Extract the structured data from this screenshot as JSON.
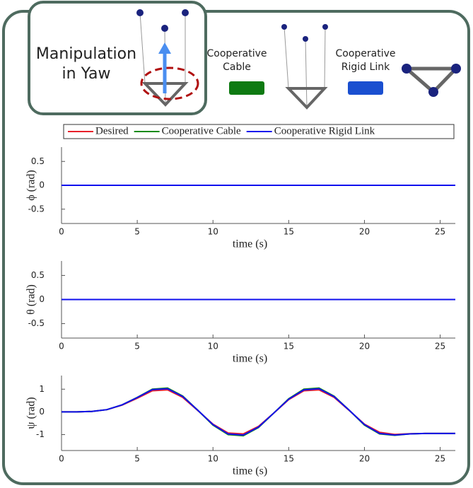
{
  "header": {
    "inset_title_lines": [
      "Manipulation",
      "in Yaw"
    ],
    "cable_label_lines": [
      "Cooperative",
      "Cable"
    ],
    "rigid_label_lines": [
      "Cooperative",
      "Rigid Link"
    ]
  },
  "chart_data": [
    {
      "type": "line",
      "x_label": "time (s)",
      "y_label": "ϕ (rad)",
      "xlim": [
        0,
        26
      ],
      "ylim": [
        -0.8,
        0.8
      ],
      "xticks": [
        0,
        5,
        10,
        15,
        20,
        25
      ],
      "yticks": [
        0.5,
        0,
        -0.5
      ],
      "legend": "top",
      "series": [
        {
          "name": "Desired",
          "color": "#e8202a",
          "x": [
            0,
            26
          ],
          "values": [
            0,
            0
          ]
        },
        {
          "name": "Cooperative Cable",
          "color": "#138a13",
          "x": [
            0,
            26
          ],
          "values": [
            0,
            0
          ]
        },
        {
          "name": "Cooperative Rigid Link",
          "color": "#1010ee",
          "x": [
            0,
            26
          ],
          "values": [
            0,
            0
          ]
        }
      ]
    },
    {
      "type": "line",
      "x_label": "time (s)",
      "y_label": "θ (rad)",
      "xlim": [
        0,
        26
      ],
      "ylim": [
        -0.8,
        0.8
      ],
      "xticks": [
        0,
        5,
        10,
        15,
        20,
        25
      ],
      "yticks": [
        0.5,
        0,
        -0.5
      ],
      "series": [
        {
          "color": "#e8202a",
          "x": [
            0,
            26
          ],
          "values": [
            0,
            0
          ]
        },
        {
          "color": "#138a13",
          "x": [
            0,
            26
          ],
          "values": [
            0,
            0
          ]
        },
        {
          "color": "#1010ee",
          "x": [
            0,
            26
          ],
          "values": [
            0,
            0
          ]
        }
      ]
    },
    {
      "type": "line",
      "x_label": "time (s)",
      "y_label": "ψ (rad)",
      "xlim": [
        0,
        26
      ],
      "ylim": [
        -1.7,
        1.6
      ],
      "xticks": [
        0,
        5,
        10,
        15,
        20,
        25
      ],
      "yticks": [
        1,
        0,
        -1
      ],
      "series": [
        {
          "color": "#e8202a",
          "x": [
            0,
            1,
            2,
            3,
            4,
            5,
            6,
            7,
            8,
            9,
            10,
            11,
            12,
            13,
            14,
            15,
            16,
            17,
            18,
            19,
            20,
            21,
            22,
            23,
            24,
            25,
            26
          ],
          "values": [
            0,
            0,
            0.02,
            0.1,
            0.3,
            0.6,
            0.93,
            0.97,
            0.64,
            0.06,
            -0.54,
            -0.93,
            -0.97,
            -0.64,
            -0.06,
            0.54,
            0.93,
            0.97,
            0.64,
            0.06,
            -0.54,
            -0.9,
            -0.99,
            -0.96,
            -0.95,
            -0.95,
            -0.95
          ]
        },
        {
          "color": "#138a13",
          "x": [
            0,
            1,
            2,
            3,
            4,
            5,
            6,
            7,
            8,
            9,
            10,
            11,
            12,
            13,
            14,
            15,
            16,
            17,
            18,
            19,
            20,
            21,
            22,
            23,
            24,
            25,
            26
          ],
          "values": [
            0,
            0,
            0.02,
            0.1,
            0.31,
            0.64,
            1.0,
            1.05,
            0.7,
            0.07,
            -0.58,
            -1.0,
            -1.05,
            -0.69,
            -0.06,
            0.58,
            1.0,
            1.05,
            0.69,
            0.07,
            -0.58,
            -0.97,
            -1.03,
            -0.97,
            -0.95,
            -0.95,
            -0.95
          ]
        },
        {
          "color": "#1010ee",
          "x": [
            0,
            1,
            2,
            3,
            4,
            5,
            6,
            7,
            8,
            9,
            10,
            11,
            12,
            13,
            14,
            15,
            16,
            17,
            18,
            19,
            20,
            21,
            22,
            23,
            24,
            25,
            26
          ],
          "values": [
            0,
            0,
            0.02,
            0.1,
            0.31,
            0.63,
            0.98,
            1.02,
            0.68,
            0.07,
            -0.56,
            -0.97,
            -1.02,
            -0.67,
            -0.06,
            0.56,
            0.97,
            1.02,
            0.67,
            0.07,
            -0.56,
            -0.95,
            -1.02,
            -0.97,
            -0.95,
            -0.95,
            -0.95
          ]
        }
      ]
    }
  ]
}
